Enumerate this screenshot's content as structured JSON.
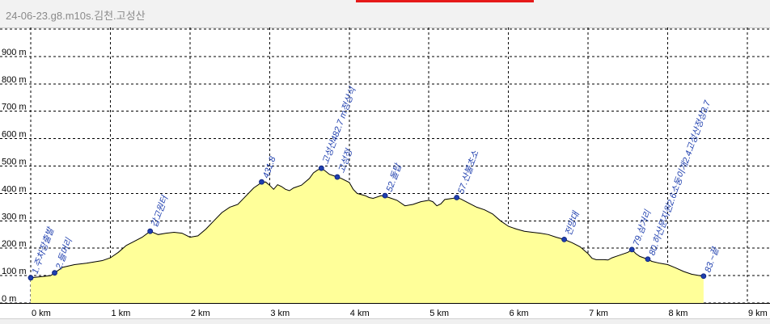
{
  "window": {
    "title": "24-06-23.g8.m10s.김천.고성산"
  },
  "chart_data": {
    "type": "area",
    "title": "",
    "xlabel": "",
    "ylabel": "",
    "xlim": [
      0,
      9
    ],
    "ylim": [
      0,
      1000
    ],
    "grid": true,
    "fill_color": "#ffff99",
    "line_color": "#000000",
    "marker_color": "#1f3fae",
    "x_ticks": [
      {
        "value": 0,
        "label": "0 km"
      },
      {
        "value": 1,
        "label": "1 km"
      },
      {
        "value": 2,
        "label": "2 km"
      },
      {
        "value": 3,
        "label": "3 km"
      },
      {
        "value": 4,
        "label": "4 km"
      },
      {
        "value": 5,
        "label": "5 km"
      },
      {
        "value": 6,
        "label": "6 km"
      },
      {
        "value": 7,
        "label": "7 km"
      },
      {
        "value": 8,
        "label": "8 km"
      },
      {
        "value": 9,
        "label": "9 km"
      }
    ],
    "y_ticks": [
      {
        "value": 0,
        "label": "0 m"
      },
      {
        "value": 100,
        "label": "100 m"
      },
      {
        "value": 200,
        "label": "200 m"
      },
      {
        "value": 300,
        "label": "300 m"
      },
      {
        "value": 400,
        "label": "400 m"
      },
      {
        "value": 500,
        "label": "500 m"
      },
      {
        "value": 600,
        "label": "600 m"
      },
      {
        "value": 700,
        "label": "700 m"
      },
      {
        "value": 800,
        "label": "800 m"
      },
      {
        "value": 900,
        "label": "900 m"
      }
    ],
    "profile": [
      [
        0,
        92
      ],
      [
        0.1,
        95
      ],
      [
        0.25,
        100
      ],
      [
        0.3,
        110
      ],
      [
        0.4,
        130
      ],
      [
        0.55,
        140
      ],
      [
        0.7,
        145
      ],
      [
        0.8,
        150
      ],
      [
        0.9,
        155
      ],
      [
        1.0,
        165
      ],
      [
        1.1,
        185
      ],
      [
        1.2,
        210
      ],
      [
        1.3,
        225
      ],
      [
        1.4,
        240
      ],
      [
        1.5,
        262
      ],
      [
        1.6,
        250
      ],
      [
        1.7,
        255
      ],
      [
        1.8,
        258
      ],
      [
        1.9,
        255
      ],
      [
        2.0,
        240
      ],
      [
        2.1,
        245
      ],
      [
        2.2,
        270
      ],
      [
        2.3,
        300
      ],
      [
        2.4,
        330
      ],
      [
        2.5,
        350
      ],
      [
        2.6,
        360
      ],
      [
        2.7,
        390
      ],
      [
        2.8,
        420
      ],
      [
        2.9,
        440
      ],
      [
        2.95,
        442
      ],
      [
        3.0,
        430
      ],
      [
        3.05,
        415
      ],
      [
        3.1,
        432
      ],
      [
        3.15,
        425
      ],
      [
        3.2,
        415
      ],
      [
        3.25,
        410
      ],
      [
        3.3,
        420
      ],
      [
        3.4,
        430
      ],
      [
        3.5,
        455
      ],
      [
        3.55,
        475
      ],
      [
        3.6,
        485
      ],
      [
        3.65,
        492
      ],
      [
        3.7,
        482
      ],
      [
        3.75,
        470
      ],
      [
        3.8,
        465
      ],
      [
        3.85,
        460
      ],
      [
        3.9,
        455
      ],
      [
        4.0,
        440
      ],
      [
        4.05,
        415
      ],
      [
        4.1,
        400
      ],
      [
        4.2,
        392
      ],
      [
        4.25,
        385
      ],
      [
        4.3,
        382
      ],
      [
        4.4,
        392
      ],
      [
        4.5,
        385
      ],
      [
        4.6,
        375
      ],
      [
        4.7,
        355
      ],
      [
        4.8,
        360
      ],
      [
        4.9,
        370
      ],
      [
        5.0,
        375
      ],
      [
        5.05,
        370
      ],
      [
        5.1,
        355
      ],
      [
        5.15,
        362
      ],
      [
        5.2,
        378
      ],
      [
        5.3,
        382
      ],
      [
        5.35,
        385
      ],
      [
        5.4,
        380
      ],
      [
        5.5,
        365
      ],
      [
        5.6,
        350
      ],
      [
        5.7,
        340
      ],
      [
        5.8,
        325
      ],
      [
        5.9,
        300
      ],
      [
        6.0,
        280
      ],
      [
        6.1,
        270
      ],
      [
        6.2,
        262
      ],
      [
        6.3,
        258
      ],
      [
        6.4,
        255
      ],
      [
        6.5,
        250
      ],
      [
        6.6,
        240
      ],
      [
        6.7,
        232
      ],
      [
        6.8,
        220
      ],
      [
        6.9,
        205
      ],
      [
        7.0,
        180
      ],
      [
        7.05,
        163
      ],
      [
        7.1,
        158
      ],
      [
        7.2,
        158
      ],
      [
        7.25,
        157
      ],
      [
        7.3,
        165
      ],
      [
        7.4,
        175
      ],
      [
        7.5,
        185
      ],
      [
        7.55,
        195
      ],
      [
        7.6,
        180
      ],
      [
        7.65,
        170
      ],
      [
        7.7,
        165
      ],
      [
        7.75,
        160
      ],
      [
        7.8,
        152
      ],
      [
        7.9,
        145
      ],
      [
        8.0,
        140
      ],
      [
        8.1,
        128
      ],
      [
        8.2,
        115
      ],
      [
        8.3,
        105
      ],
      [
        8.4,
        100
      ],
      [
        8.45,
        98
      ]
    ],
    "waypoints": [
      {
        "x": 0.0,
        "y": 92,
        "label": "1.주차장출발"
      },
      {
        "x": 0.3,
        "y": 110,
        "label": "2.들머리"
      },
      {
        "x": 1.5,
        "y": 262,
        "label": "갑고원터"
      },
      {
        "x": 2.9,
        "y": 442,
        "label": "431.8"
      },
      {
        "x": 3.65,
        "y": 492,
        "label": "고성산482.7 m정상석"
      },
      {
        "x": 3.85,
        "y": 460,
        "label": "고성정"
      },
      {
        "x": 4.45,
        "y": 392,
        "label": "52.돌탑"
      },
      {
        "x": 5.35,
        "y": 385,
        "label": "57.산불초소"
      },
      {
        "x": 6.7,
        "y": 232,
        "label": "전망대"
      },
      {
        "x": 7.55,
        "y": 195,
        "label": "79.삼거리"
      },
      {
        "x": 7.75,
        "y": 160,
        "label": "80.하산문지원2.6소둥이개2.4고성산정상3.7"
      },
      {
        "x": 8.45,
        "y": 98,
        "label": "83.~끝"
      }
    ]
  }
}
